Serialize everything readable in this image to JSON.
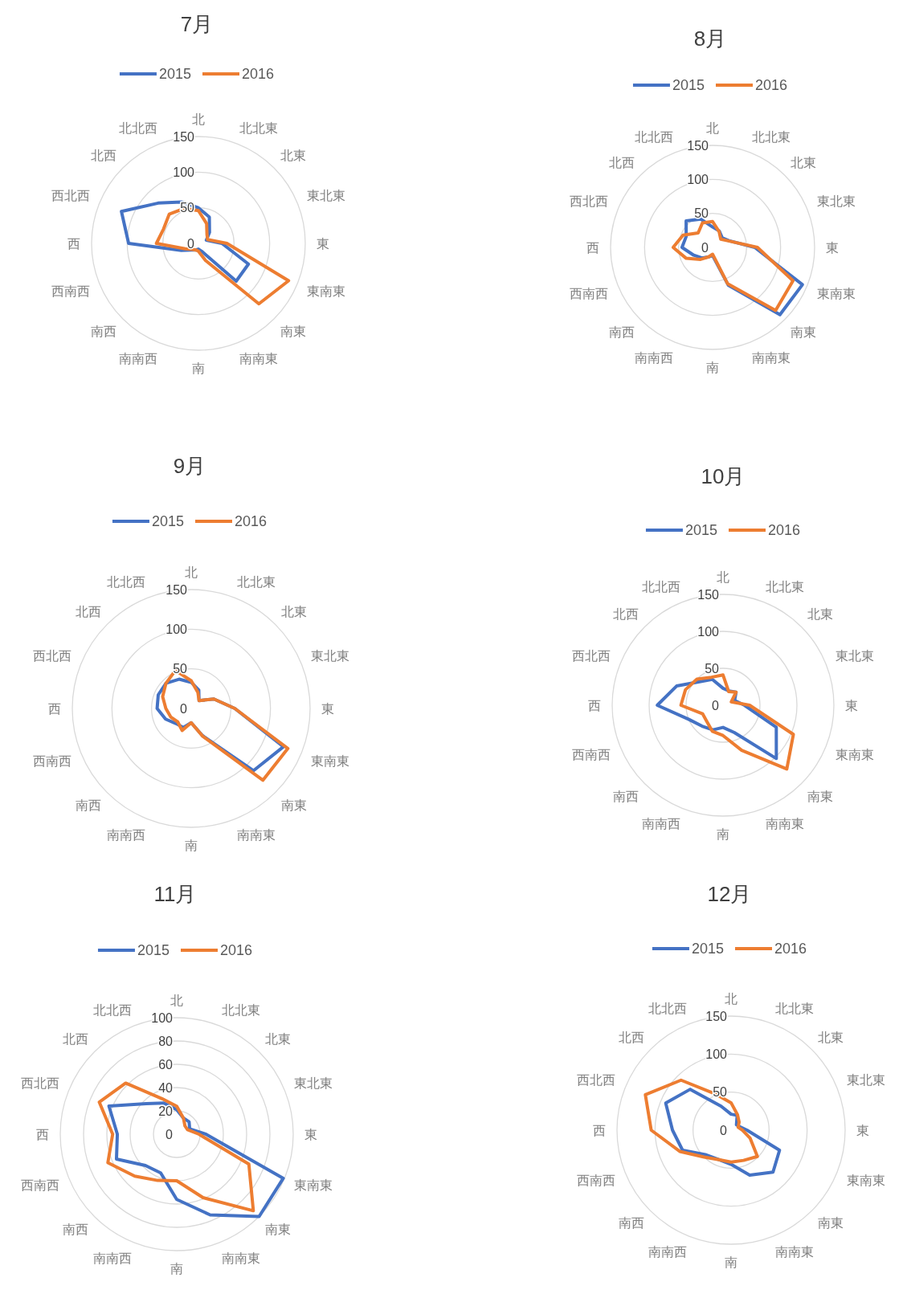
{
  "chart_data": [
    {
      "type": "radar",
      "title": "7月",
      "categories": [
        "北",
        "北北東",
        "北東",
        "東北東",
        "東",
        "東南東",
        "南東",
        "南南東",
        "南",
        "南南西",
        "南西",
        "西南西",
        "西",
        "西北西",
        "北西",
        "北北西"
      ],
      "ylim": [
        0,
        150
      ],
      "yticks": [
        0,
        50,
        100,
        150
      ],
      "grid": true,
      "legend": "top",
      "series": [
        {
          "name": "2015",
          "color": "#4472c4",
          "values": [
            50,
            40,
            22,
            12,
            33,
            76,
            75,
            12,
            8,
            10,
            13,
            26,
            98,
            117,
            80,
            63
          ]
        },
        {
          "name": "2016",
          "color": "#ed7d31",
          "values": [
            46,
            30,
            17,
            14,
            40,
            137,
            120,
            26,
            11,
            10,
            12,
            20,
            59,
            53,
            58,
            53
          ]
        }
      ]
    },
    {
      "type": "radar",
      "title": "8月",
      "categories": [
        "北",
        "北北東",
        "北東",
        "東北東",
        "東",
        "東南東",
        "南東",
        "南南東",
        "南",
        "南南西",
        "南西",
        "西南西",
        "西",
        "西北西",
        "北西",
        "北北西"
      ],
      "ylim": [
        0,
        150
      ],
      "yticks": [
        0,
        50,
        100,
        150
      ],
      "grid": true,
      "legend": "top",
      "series": [
        {
          "name": "2015",
          "color": "#4472c4",
          "values": [
            30,
            26,
            20,
            26,
            62,
            143,
            140,
            60,
            12,
            15,
            22,
            30,
            45,
            42,
            55,
            45
          ]
        },
        {
          "name": "2016",
          "color": "#ed7d31",
          "values": [
            38,
            25,
            17,
            25,
            66,
            128,
            131,
            58,
            10,
            15,
            25,
            42,
            58,
            47,
            30,
            39
          ]
        }
      ]
    },
    {
      "type": "radar",
      "title": "9月",
      "categories": [
        "北",
        "北北東",
        "北東",
        "東北東",
        "東",
        "東南東",
        "南東",
        "南南東",
        "南",
        "南南西",
        "南西",
        "西南西",
        "西",
        "西北西",
        "北西",
        "北北西"
      ],
      "ylim": [
        0,
        150
      ],
      "yticks": [
        0,
        50,
        100,
        150
      ],
      "grid": true,
      "legend": "top",
      "series": [
        {
          "name": "2015",
          "color": "#4472c4",
          "values": [
            33,
            25,
            14,
            31,
            55,
            126,
            111,
            37,
            18,
            26,
            27,
            35,
            43,
            45,
            45,
            40
          ]
        },
        {
          "name": "2016",
          "color": "#ed7d31",
          "values": [
            35,
            22,
            14,
            31,
            55,
            132,
            128,
            38,
            18,
            30,
            24,
            28,
            32,
            39,
            45,
            52
          ]
        }
      ]
    },
    {
      "type": "radar",
      "title": "10月",
      "categories": [
        "北",
        "北北東",
        "北東",
        "東北東",
        "東",
        "東南東",
        "南東",
        "南南東",
        "南",
        "南南西",
        "南西",
        "西南西",
        "西",
        "西北西",
        "北西",
        "北北西"
      ],
      "ylim": [
        0,
        150
      ],
      "yticks": [
        0,
        50,
        100,
        150
      ],
      "grid": true,
      "legend": "top",
      "series": [
        {
          "name": "2015",
          "color": "#4472c4",
          "values": [
            23,
            21,
            25,
            17,
            29,
            78,
            102,
            40,
            30,
            36,
            40,
            50,
            89,
            68,
            45,
            38
          ]
        },
        {
          "name": "2016",
          "color": "#ed7d31",
          "values": [
            41,
            20,
            25,
            12,
            36,
            103,
            122,
            66,
            41,
            38,
            31,
            30,
            57,
            55,
            50,
            41
          ]
        }
      ]
    },
    {
      "type": "radar",
      "title": "11月",
      "categories": [
        "北",
        "北北東",
        "北東",
        "東北東",
        "東",
        "東南東",
        "南東",
        "南南東",
        "南",
        "南南西",
        "南西",
        "西南西",
        "西",
        "西北西",
        "北西",
        "北北西"
      ],
      "ylim": [
        0,
        100
      ],
      "yticks": [
        0,
        20,
        40,
        60,
        80,
        100
      ],
      "grid": true,
      "legend": "top",
      "series": [
        {
          "name": "2015",
          "color": "#4472c4",
          "values": [
            21,
            15,
            15,
            12,
            25,
            99,
            100,
            75,
            56,
            36,
            38,
            56,
            51,
            63,
            37,
            29
          ]
        },
        {
          "name": "2016",
          "color": "#ed7d31",
          "values": [
            24,
            15,
            10,
            10,
            19,
            67,
            93,
            59,
            40,
            43,
            51,
            64,
            55,
            72,
            62,
            33
          ]
        }
      ]
    },
    {
      "type": "radar",
      "title": "12月",
      "categories": [
        "北",
        "北北東",
        "北東",
        "東北東",
        "東",
        "東南東",
        "南東",
        "南南東",
        "南",
        "南南西",
        "南西",
        "西南西",
        "西",
        "西北西",
        "北西",
        "北北西"
      ],
      "ylim": [
        0,
        150
      ],
      "yticks": [
        0,
        50,
        100,
        150
      ],
      "grid": true,
      "legend": "top",
      "series": [
        {
          "name": "2015",
          "color": "#4472c4",
          "values": [
            21,
            21,
            10,
            12,
            21,
            69,
            78,
            64,
            45,
            42,
            46,
            69,
            77,
            93,
            76,
            34
          ]
        },
        {
          "name": "2016",
          "color": "#ed7d31",
          "values": [
            36,
            22,
            15,
            10,
            15,
            27,
            49,
            43,
            42,
            42,
            50,
            73,
            105,
            122,
            93,
            51
          ]
        }
      ]
    }
  ]
}
